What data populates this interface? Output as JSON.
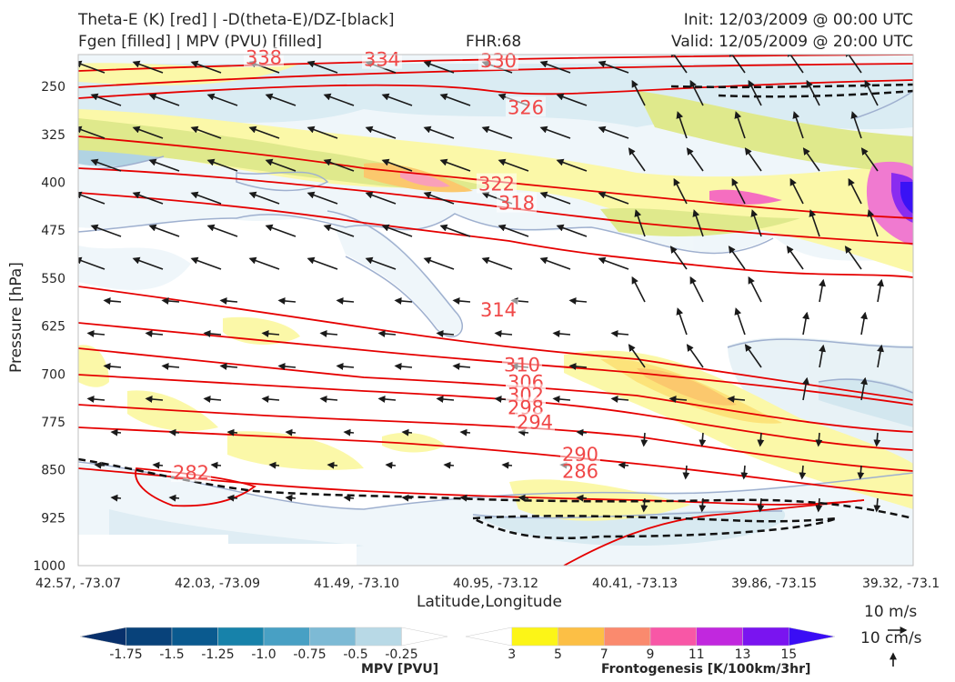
{
  "header": {
    "title_line1": "Theta-E (K) [red] | -D(theta-E)/DZ-[black]",
    "title_line2": "Fgen [filled] | MPV (PVU) [filled]",
    "fhr": "FHR:68",
    "init": "Init: 12/03/2009 @ 00:00 UTC",
    "valid": "Valid: 12/05/2009 @ 20:00 UTC"
  },
  "chart_data": {
    "type": "cross-section",
    "xlabel": "Latitude,Longitude",
    "ylabel": "Pressure [hPa]",
    "x_ticks": [
      "42.57, -73.07",
      "42.03, -73.09",
      "41.49, -73.10",
      "40.95, -73.12",
      "40.41, -73.13",
      "39.86, -73.15",
      "39.32, -73.1"
    ],
    "y_ticks": [
      250,
      325,
      400,
      475,
      550,
      625,
      700,
      775,
      850,
      925,
      1000
    ],
    "ylim": [
      1000,
      200
    ],
    "theta_e_contours": [
      {
        "level": "338",
        "pressure_at_label": 205
      },
      {
        "level": "334",
        "pressure_at_label": 208
      },
      {
        "level": "330",
        "pressure_at_label": 210
      },
      {
        "level": "326",
        "pressure_at_label": 283
      },
      {
        "level": "322",
        "pressure_at_label": 403
      },
      {
        "level": "318",
        "pressure_at_label": 433
      },
      {
        "level": "314",
        "pressure_at_label": 600
      },
      {
        "level": "310",
        "pressure_at_label": 686
      },
      {
        "level": "306",
        "pressure_at_label": 713
      },
      {
        "level": "302",
        "pressure_at_label": 733
      },
      {
        "level": "298",
        "pressure_at_label": 753
      },
      {
        "level": "294",
        "pressure_at_label": 776
      },
      {
        "level": "290",
        "pressure_at_label": 826
      },
      {
        "level": "286",
        "pressure_at_label": 853
      },
      {
        "level": "282",
        "pressure_at_label": 855
      }
    ],
    "wind_legend": {
      "horizontal": "10 m/s",
      "vertical": "10 cm/s"
    }
  },
  "colorbars": {
    "mpv": {
      "title": "MPV [PVU]",
      "labels": [
        "-1.75",
        "-1.5",
        "-1.25",
        "-1.0",
        "-0.75",
        "-0.5",
        "-0.25"
      ],
      "colors": [
        "#08306b",
        "#08427a",
        "#0a5a8f",
        "#1782aa",
        "#48a0c4",
        "#7dbad5",
        "#b8d9e6",
        "#ffffff"
      ]
    },
    "fgen": {
      "title": "Frontogenesis [K/100km/3hr]",
      "labels": [
        "3",
        "5",
        "7",
        "9",
        "11",
        "13",
        "15"
      ],
      "colors": [
        "#ffffff",
        "#fcf517",
        "#fcbf45",
        "#fa8a6e",
        "#f857a6",
        "#c128de",
        "#7a14f0",
        "#3a0df5"
      ]
    }
  }
}
